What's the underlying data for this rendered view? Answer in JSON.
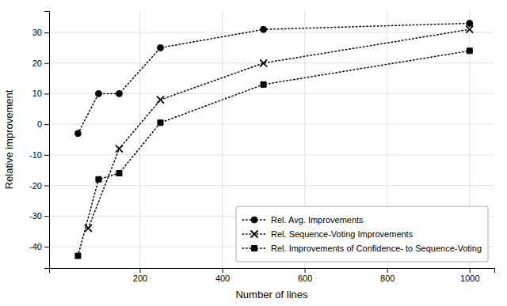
{
  "chart_data": {
    "type": "line",
    "xlabel": "Number of lines",
    "ylabel": "Relative improvement",
    "series": [
      {
        "name": "Rel. Avg. Improvements",
        "x": [
          50,
          100,
          150,
          250,
          500,
          1000
        ],
        "values": [
          -3,
          10,
          10,
          25,
          31,
          33
        ],
        "marker": "circle",
        "line_style": "dotted",
        "color": "black"
      },
      {
        "name": "Rel. Sequence-Voting Improvements",
        "x": [
          75,
          150,
          250,
          500,
          1000
        ],
        "values": [
          -34,
          -8,
          8,
          20,
          31
        ],
        "marker": "x",
        "line_style": "dotted",
        "color": "black"
      },
      {
        "name": "Rel. Improvements of Confidence- to Sequence-Voting",
        "x": [
          50,
          100,
          150,
          250,
          500,
          1000
        ],
        "values": [
          -43,
          -18,
          -16,
          0.5,
          13,
          24
        ],
        "marker": "square",
        "line_style": "dotted",
        "color": "black"
      }
    ],
    "xlim": [
      -20,
      1060
    ],
    "ylim": [
      -47,
      37
    ],
    "xticks": [
      200,
      400,
      600,
      800,
      1000
    ],
    "yticks": [
      -40,
      -30,
      -20,
      -10,
      0,
      10,
      20,
      30
    ],
    "grid": true,
    "legend": "lower right"
  }
}
